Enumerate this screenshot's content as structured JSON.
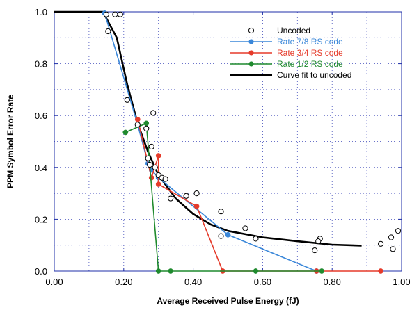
{
  "chart_data": {
    "type": "scatter",
    "xlabel": "Average Received Pulse Energy (fJ)",
    "ylabel": "PPM Symbol Error Rate",
    "xlim": [
      0.0,
      1.0
    ],
    "ylim": [
      0.0,
      1.0
    ],
    "xticks": [
      "0.00",
      "0.20",
      "0.40",
      "0.60",
      "0.80",
      "1.00"
    ],
    "yticks": [
      "0.0",
      "0.2",
      "0.4",
      "0.6",
      "0.8",
      "1.0"
    ],
    "grid": true,
    "legend_position": "top-right",
    "series": [
      {
        "name": "Uncoded",
        "color": "#000000",
        "style": "open-circle",
        "x": [
          0.15,
          0.175,
          0.19,
          0.155,
          0.21,
          0.24,
          0.265,
          0.28,
          0.27,
          0.275,
          0.285,
          0.3,
          0.31,
          0.29,
          0.32,
          0.335,
          0.38,
          0.41,
          0.48,
          0.48,
          0.55,
          0.58,
          0.75,
          0.765,
          0.76,
          0.94,
          0.97,
          0.975,
          0.99
        ],
        "y": [
          0.99,
          0.99,
          0.99,
          0.925,
          0.66,
          0.565,
          0.55,
          0.48,
          0.435,
          0.41,
          0.61,
          0.37,
          0.36,
          0.4,
          0.355,
          0.28,
          0.29,
          0.3,
          0.23,
          0.135,
          0.165,
          0.125,
          0.08,
          0.125,
          0.115,
          0.105,
          0.13,
          0.085,
          0.155
        ]
      },
      {
        "name": "Rate 7/8 RS code",
        "color": "#3a87d9",
        "style": "line-marker",
        "x": [
          0.145,
          0.24,
          0.27,
          0.28,
          0.3,
          0.5,
          0.755
        ],
        "y": [
          0.995,
          0.565,
          0.415,
          0.39,
          0.36,
          0.14,
          0.0
        ]
      },
      {
        "name": "Rate 3/4 RS code",
        "color": "#e53a2a",
        "style": "line-marker",
        "x": [
          0.24,
          0.28,
          0.3,
          0.3,
          0.41,
          0.485,
          0.755,
          0.94
        ],
        "y": [
          0.585,
          0.36,
          0.445,
          0.335,
          0.25,
          0.0,
          0.0,
          0.0
        ]
      },
      {
        "name": "Rate 1/2 RS code",
        "color": "#1f8a2e",
        "style": "line-marker",
        "x": [
          0.205,
          0.265,
          0.3,
          0.335,
          0.58,
          0.77
        ],
        "y": [
          0.535,
          0.57,
          0.0,
          0.0,
          0.0,
          0.0
        ]
      },
      {
        "name": "Curve fit to uncoded",
        "color": "#000000",
        "style": "line",
        "x": [
          0.0,
          0.14,
          0.18,
          0.21,
          0.24,
          0.27,
          0.3,
          0.35,
          0.4,
          0.45,
          0.5,
          0.6,
          0.7,
          0.8,
          0.885
        ],
        "y": [
          1.0,
          1.0,
          0.9,
          0.72,
          0.57,
          0.46,
          0.37,
          0.28,
          0.22,
          0.18,
          0.155,
          0.13,
          0.115,
          0.102,
          0.098
        ]
      }
    ]
  }
}
